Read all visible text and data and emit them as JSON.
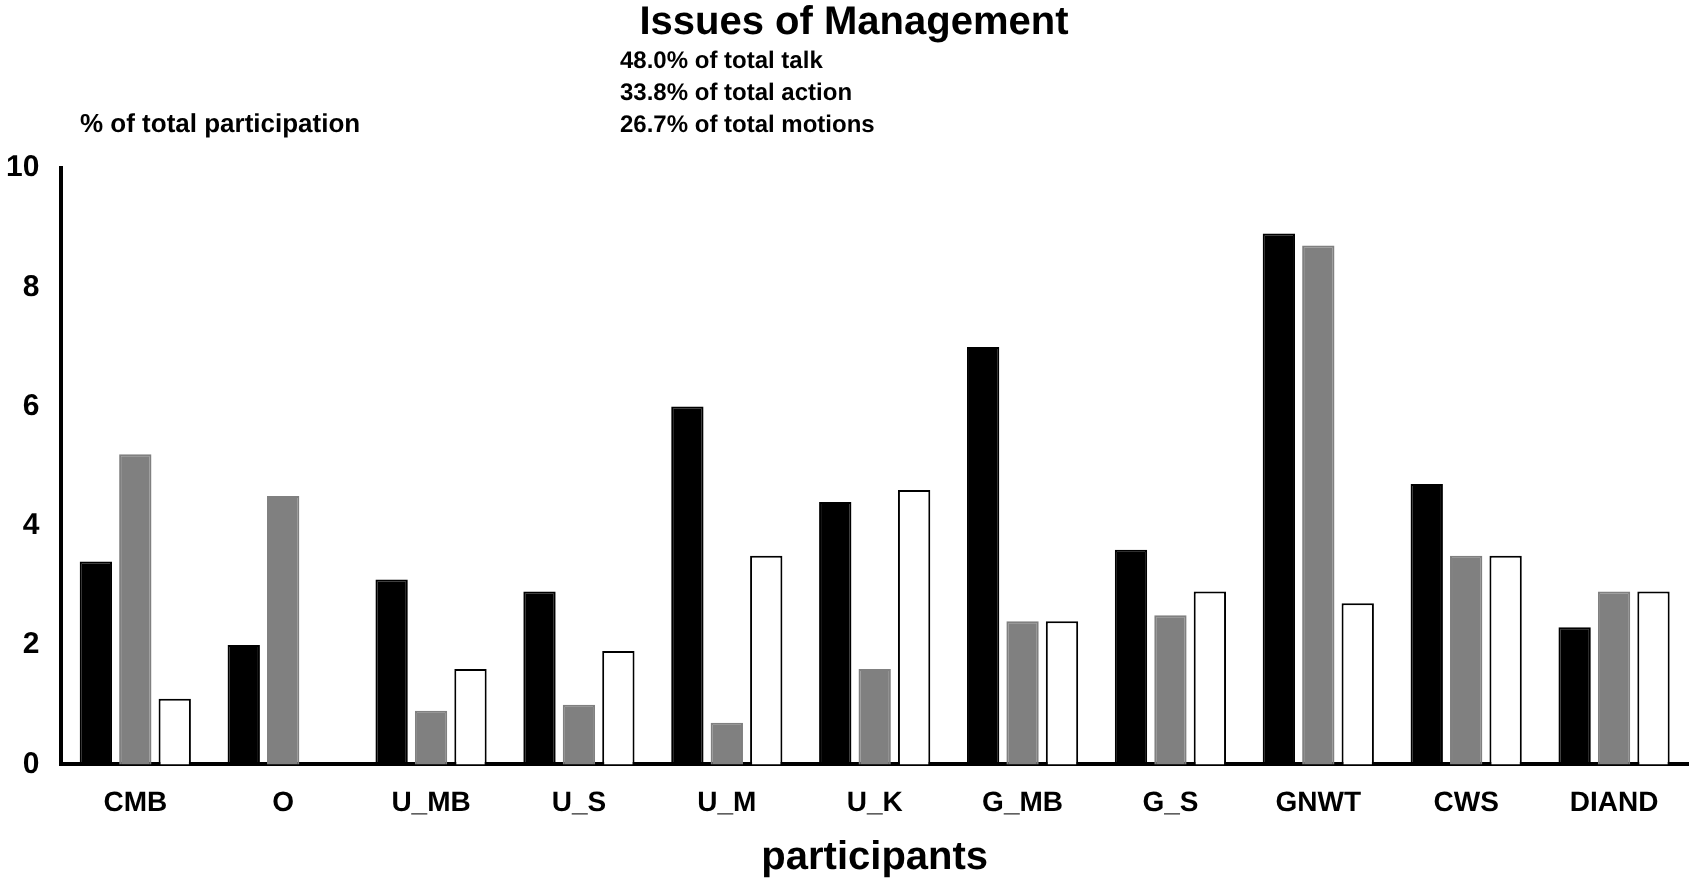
{
  "chart_data": {
    "type": "bar",
    "title": "Issues of Management",
    "ylabel": "% of total participation",
    "xlabel": "participants",
    "annotations": [
      "48.0% of total talk",
      "33.8% of total action",
      "26.7% of total motions"
    ],
    "categories": [
      "CMB",
      "O",
      "U_MB",
      "U_S",
      "U_M",
      "U_K",
      "G_MB",
      "G_S",
      "GNWT",
      "CWS",
      "DIAND"
    ],
    "series": [
      {
        "color": "#000000",
        "values": [
          3.4,
          2.0,
          3.1,
          2.9,
          6.0,
          4.4,
          7.0,
          3.6,
          8.9,
          4.7,
          2.3
        ]
      },
      {
        "color": "#808080",
        "values": [
          5.2,
          4.5,
          0.9,
          1.0,
          0.7,
          1.6,
          2.4,
          2.5,
          8.7,
          3.5,
          2.9
        ]
      },
      {
        "color": "#ffffff",
        "values": [
          1.1,
          0,
          1.6,
          1.9,
          3.5,
          4.6,
          2.4,
          2.9,
          2.7,
          3.5,
          2.9
        ]
      }
    ],
    "ylim": [
      0,
      10
    ],
    "yticks": [
      0,
      2,
      4,
      6,
      8,
      10
    ],
    "grid": false,
    "legend": false
  }
}
